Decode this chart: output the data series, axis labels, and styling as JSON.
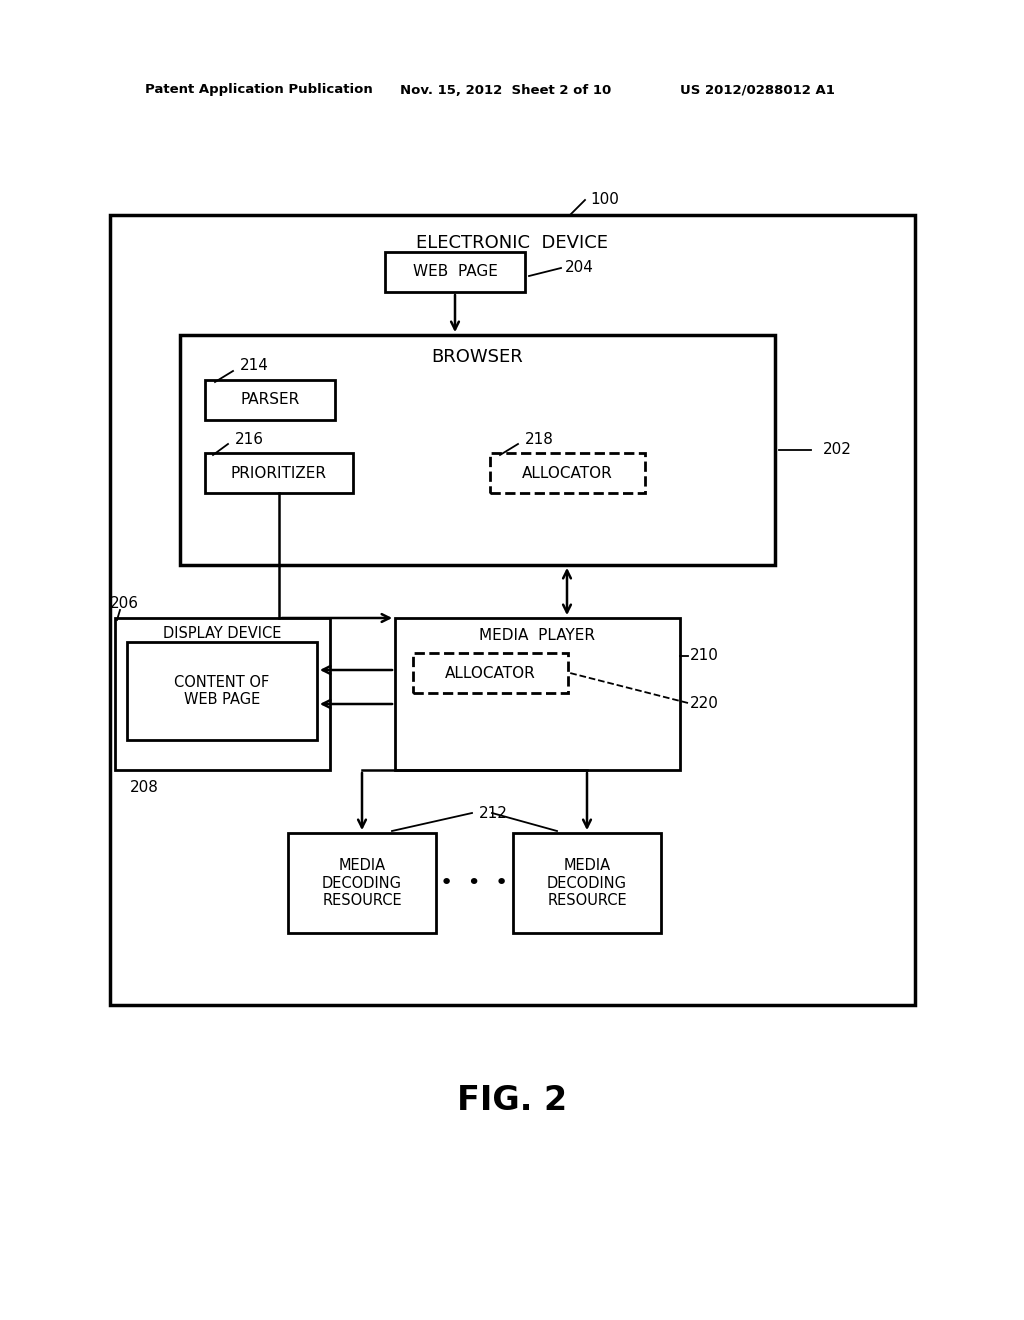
{
  "bg_color": "#ffffff",
  "text_color": "#000000",
  "header_left": "Patent Application Publication",
  "header_mid": "Nov. 15, 2012  Sheet 2 of 10",
  "header_right": "US 2012/0288012 A1",
  "fig_label": "FIG. 2",
  "outer_box_label": "ELECTRONIC  DEVICE",
  "outer_box_ref": "100",
  "browser_box_label": "BROWSER",
  "browser_box_ref": "202",
  "webpage_box_label": "WEB  PAGE",
  "webpage_box_ref": "204",
  "parser_box_label": "PARSER",
  "parser_box_ref": "214",
  "prioritizer_box_label": "PRIORITIZER",
  "prioritizer_box_ref": "216",
  "allocator_browser_label": "ALLOCATOR",
  "allocator_browser_ref": "218",
  "display_device_label": "DISPLAY DEVICE",
  "display_device_ref": "206",
  "content_box_label": "CONTENT OF\nWEB PAGE",
  "content_box_ref": "208",
  "media_player_label": "MEDIA  PLAYER",
  "media_player_ref": "210",
  "allocator_mp_label": "ALLOCATOR",
  "allocator_mp_ref": "220",
  "media_dec1_label": "MEDIA\nDECODING\nRESOURCE",
  "media_dec2_label": "MEDIA\nDECODING\nRESOURCE",
  "media_dec_ref": "212",
  "dots": "•  •  •"
}
